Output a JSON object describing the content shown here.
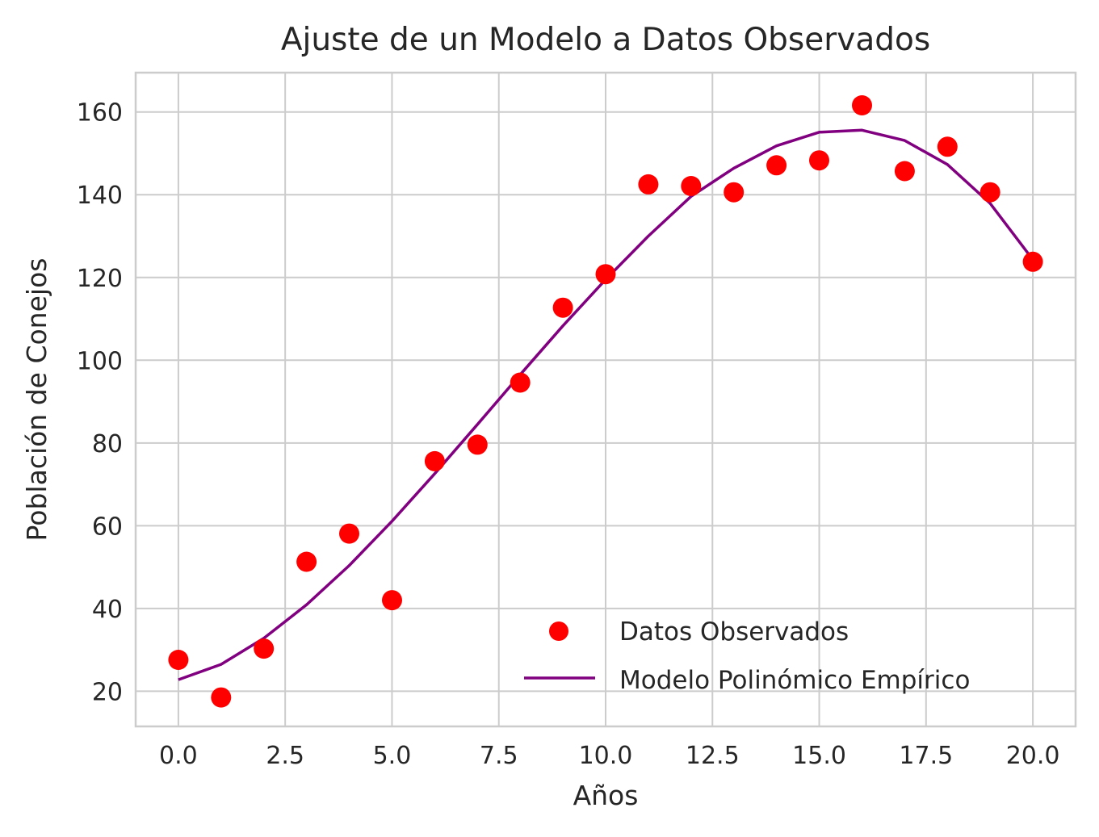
{
  "chart_data": {
    "type": "scatter",
    "title": "Ajuste de un Modelo a Datos Observados",
    "xlabel": "Años",
    "ylabel": "Población de Conejos",
    "xlim": [
      -1.0,
      21.0
    ],
    "ylim": [
      11.5,
      169.5
    ],
    "xticks": [
      0.0,
      2.5,
      5.0,
      7.5,
      10.0,
      12.5,
      15.0,
      17.5,
      20.0
    ],
    "xtick_labels": [
      "0.0",
      "2.5",
      "5.0",
      "7.5",
      "10.0",
      "12.5",
      "15.0",
      "17.5",
      "20.0"
    ],
    "yticks": [
      20,
      40,
      60,
      80,
      100,
      120,
      140,
      160
    ],
    "ytick_labels": [
      "20",
      "40",
      "60",
      "80",
      "100",
      "120",
      "140",
      "160"
    ],
    "grid": true,
    "legend_position": "lower-right",
    "series": [
      {
        "name": "Datos Observados",
        "kind": "scatter",
        "color": "#ff0000",
        "x": [
          0,
          1,
          2,
          3,
          4,
          5,
          6,
          7,
          8,
          9,
          10,
          11,
          12,
          13,
          14,
          15,
          16,
          17,
          18,
          19,
          20
        ],
        "y": [
          27.6,
          18.5,
          30.3,
          51.3,
          58.1,
          42.0,
          75.6,
          79.6,
          94.6,
          112.7,
          120.8,
          142.5,
          142.1,
          140.6,
          147.1,
          148.3,
          161.6,
          145.7,
          151.6,
          140.6,
          123.8
        ]
      },
      {
        "name": "Modelo Polinómico Empírico",
        "kind": "line",
        "color": "#800080",
        "x": [
          0,
          1,
          2,
          3,
          4,
          5,
          6,
          7,
          8,
          9,
          10,
          11,
          12,
          13,
          14,
          15,
          16,
          17,
          18,
          19,
          20
        ],
        "y": [
          22.8,
          26.5,
          32.8,
          40.9,
          50.4,
          61.1,
          72.6,
          84.5,
          96.5,
          108.3,
          119.5,
          130.0,
          139.6,
          146.4,
          151.8,
          155.1,
          155.6,
          153.1,
          147.3,
          137.9,
          124.3
        ]
      }
    ]
  }
}
